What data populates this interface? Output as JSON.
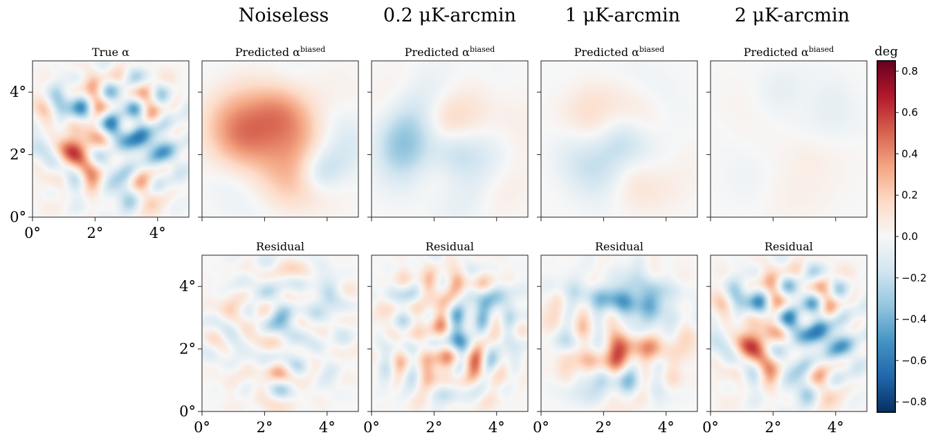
{
  "column_titles": [
    "Noiseless",
    "0.2 μK-arcmin",
    "1 μK-arcmin",
    "2 μK-arcmin"
  ],
  "colorbar": {
    "unit": "deg",
    "colormap": "RdBu_r",
    "vmin": -0.85,
    "vmax": 0.85,
    "ticks": [
      0.8,
      0.6,
      0.4,
      0.2,
      0.0,
      -0.2,
      -0.4,
      -0.6,
      -0.8
    ],
    "tick_labels": [
      "0.8",
      "0.6",
      "0.4",
      "0.2",
      "0.0",
      "−0.2",
      "−0.4",
      "−0.6",
      "−0.8"
    ],
    "color_stops": [
      "#053061",
      "#2166ac",
      "#4393c3",
      "#92c5de",
      "#d1e5f0",
      "#f7f7f7",
      "#fddbc7",
      "#f4a582",
      "#d6604d",
      "#b2182b",
      "#67001f"
    ]
  },
  "chart_data": [
    {
      "type": "heatmap",
      "title": "True α",
      "row": 0,
      "col": 0,
      "seed": 11,
      "amplitude": 0.62,
      "smoothness": "fine",
      "xlim": [
        0,
        5
      ],
      "ylim": [
        0,
        5
      ],
      "x_ticks": [
        0,
        2,
        4
      ],
      "y_ticks": [
        0,
        2,
        4
      ],
      "x_tick_labels": [
        "0°",
        "2°",
        "4°"
      ],
      "y_tick_labels": [
        "0°",
        "2°",
        "4°"
      ]
    },
    {
      "type": "heatmap",
      "title": "Predicted α",
      "title_sup": "biased",
      "row": 0,
      "col": 1,
      "column": "Noiseless",
      "seed": 23,
      "amplitude": 0.5,
      "smoothness": "coarse",
      "xlim": [
        0,
        5
      ],
      "ylim": [
        0,
        5
      ],
      "x_ticks": [
        0,
        2,
        4
      ],
      "y_ticks": [
        0,
        2,
        4
      ],
      "x_tick_labels": [],
      "y_tick_labels": []
    },
    {
      "type": "heatmap",
      "title": "Predicted α",
      "title_sup": "biased",
      "row": 0,
      "col": 2,
      "column": "0.2 μK-arcmin",
      "seed": 37,
      "amplitude": 0.35,
      "smoothness": "coarse",
      "xlim": [
        0,
        5
      ],
      "ylim": [
        0,
        5
      ],
      "x_ticks": [
        0,
        2,
        4
      ],
      "y_ticks": [
        0,
        2,
        4
      ],
      "x_tick_labels": [],
      "y_tick_labels": []
    },
    {
      "type": "heatmap",
      "title": "Predicted α",
      "title_sup": "biased",
      "row": 0,
      "col": 3,
      "column": "1 μK-arcmin",
      "seed": 41,
      "amplitude": 0.2,
      "smoothness": "coarse",
      "xlim": [
        0,
        5
      ],
      "ylim": [
        0,
        5
      ],
      "x_ticks": [
        0,
        2,
        4
      ],
      "y_ticks": [
        0,
        2,
        4
      ],
      "x_tick_labels": [],
      "y_tick_labels": []
    },
    {
      "type": "heatmap",
      "title": "Predicted α",
      "title_sup": "biased",
      "row": 0,
      "col": 4,
      "column": "2 μK-arcmin",
      "seed": 53,
      "amplitude": 0.08,
      "smoothness": "coarse",
      "xlim": [
        0,
        5
      ],
      "ylim": [
        0,
        5
      ],
      "x_ticks": [
        0,
        2,
        4
      ],
      "y_ticks": [
        0,
        2,
        4
      ],
      "x_tick_labels": [],
      "y_tick_labels": []
    },
    {
      "type": "heatmap",
      "title": "Residual",
      "row": 1,
      "col": 1,
      "column": "Noiseless",
      "seed": 61,
      "amplitude": 0.4,
      "smoothness": "fine",
      "xlim": [
        0,
        5
      ],
      "ylim": [
        0,
        5
      ],
      "x_ticks": [
        0,
        2,
        4
      ],
      "y_ticks": [
        0,
        2,
        4
      ],
      "x_tick_labels": [
        "0°",
        "2°",
        "4°"
      ],
      "y_tick_labels": [
        "0°",
        "2°",
        "4°"
      ]
    },
    {
      "type": "heatmap",
      "title": "Residual",
      "row": 1,
      "col": 2,
      "column": "0.2 μK-arcmin",
      "seed": 67,
      "amplitude": 0.5,
      "smoothness": "fine",
      "xlim": [
        0,
        5
      ],
      "ylim": [
        0,
        5
      ],
      "x_ticks": [
        0,
        2,
        4
      ],
      "y_ticks": [
        0,
        2,
        4
      ],
      "x_tick_labels": [
        "0°",
        "2°",
        "4°"
      ],
      "y_tick_labels": []
    },
    {
      "type": "heatmap",
      "title": "Residual",
      "row": 1,
      "col": 3,
      "column": "1 μK-arcmin",
      "seed": 71,
      "amplitude": 0.58,
      "smoothness": "fine",
      "xlim": [
        0,
        5
      ],
      "ylim": [
        0,
        5
      ],
      "x_ticks": [
        0,
        2,
        4
      ],
      "y_ticks": [
        0,
        2,
        4
      ],
      "x_tick_labels": [
        "0°",
        "2°",
        "4°"
      ],
      "y_tick_labels": []
    },
    {
      "type": "heatmap",
      "title": "Residual",
      "row": 1,
      "col": 4,
      "column": "2 μK-arcmin",
      "seed": 11,
      "amplitude": 0.62,
      "smoothness": "fine",
      "xlim": [
        0,
        5
      ],
      "ylim": [
        0,
        5
      ],
      "x_ticks": [
        0,
        2,
        4
      ],
      "y_ticks": [
        0,
        2,
        4
      ],
      "x_tick_labels": [
        "0°",
        "2°",
        "4°"
      ],
      "y_tick_labels": []
    }
  ]
}
